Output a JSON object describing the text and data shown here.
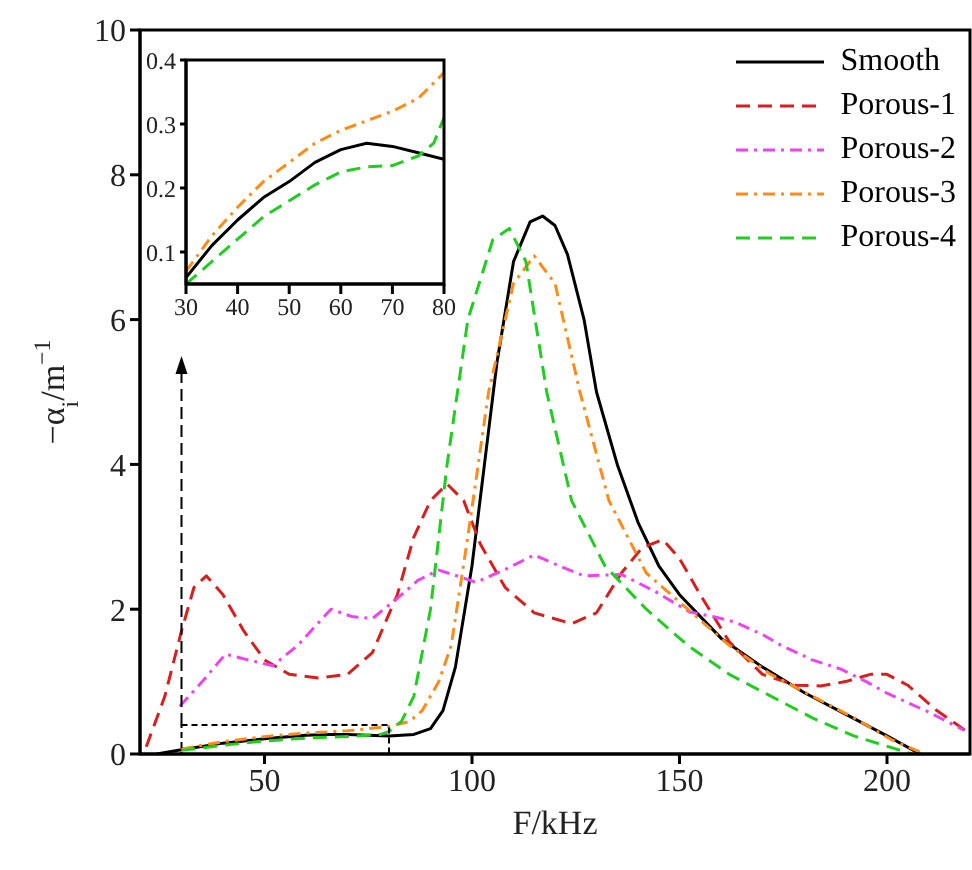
{
  "chart_data": [
    {
      "type": "line",
      "xlabel": "F/kHz",
      "ylabel": "−α$_{i}$/m$^{−1}$",
      "xlim": [
        20,
        220
      ],
      "ylim": [
        0,
        10
      ],
      "xticks": [
        50,
        100,
        150,
        200
      ],
      "yticks": [
        0,
        2,
        4,
        6,
        8,
        10
      ],
      "legend": "top right",
      "grid": false,
      "marker": "none",
      "series": [
        {
          "name": "Smooth",
          "color": "#000000",
          "line_style": "solid",
          "x": [
            24,
            30,
            40,
            50,
            60,
            65,
            70,
            80,
            86,
            90,
            93,
            96,
            100,
            103,
            106,
            110,
            114,
            117,
            120,
            123,
            127,
            130,
            135,
            140,
            145,
            150,
            160,
            170,
            180,
            190,
            200,
            208
          ],
          "values": [
            0,
            0.06,
            0.15,
            0.21,
            0.26,
            0.27,
            0.27,
            0.25,
            0.27,
            0.35,
            0.6,
            1.2,
            2.6,
            4,
            5.4,
            6.8,
            7.35,
            7.43,
            7.3,
            6.9,
            6,
            5,
            4,
            3.2,
            2.6,
            2.2,
            1.6,
            1.2,
            0.85,
            0.55,
            0.25,
            0
          ]
        },
        {
          "name": "Porous-1",
          "color": "#d62020",
          "line_style": "dashed",
          "x": [
            21.5,
            26,
            30,
            33,
            36,
            40,
            45,
            50,
            56,
            63,
            70,
            76,
            82,
            86,
            90,
            94,
            98,
            102,
            108,
            115,
            124,
            130,
            136,
            141,
            146,
            150,
            155,
            162,
            170,
            178,
            184,
            190,
            196,
            200,
            205,
            212,
            220
          ],
          "values": [
            0.1,
            0.8,
            1.7,
            2.3,
            2.46,
            2.2,
            1.7,
            1.3,
            1.1,
            1.05,
            1.1,
            1.4,
            2.2,
            3,
            3.5,
            3.73,
            3.5,
            2.9,
            2.3,
            1.95,
            1.8,
            1.95,
            2.5,
            2.85,
            2.96,
            2.7,
            2.2,
            1.55,
            1.1,
            0.95,
            0.94,
            1.0,
            1.1,
            1.1,
            0.95,
            0.6,
            0.28
          ]
        },
        {
          "name": "Porous-2",
          "color": "#ee44ee",
          "line_style": "dashdot",
          "x": [
            29.6,
            35,
            40.6,
            46,
            52,
            58,
            66,
            71,
            76,
            82,
            87,
            92,
            97,
            101,
            108,
            115,
            121,
            127,
            136,
            144,
            152.5,
            158,
            163.5,
            170,
            174.5,
            182,
            189,
            195,
            200,
            210,
            218.5
          ],
          "values": [
            0.66,
            1.0,
            1.38,
            1.3,
            1.22,
            1.5,
            2.0,
            1.9,
            1.87,
            2.15,
            2.4,
            2.54,
            2.45,
            2.37,
            2.55,
            2.75,
            2.6,
            2.46,
            2.48,
            2.25,
            1.96,
            1.9,
            1.82,
            1.65,
            1.5,
            1.3,
            1.17,
            1.0,
            0.84,
            0.58,
            0.33
          ]
        },
        {
          "name": "Porous-3",
          "color": "#ff8c1a",
          "line_style": "dashdot",
          "x": [
            30,
            40,
            50,
            60,
            70,
            80,
            85,
            88,
            92,
            95,
            99,
            104,
            110,
            115,
            120,
            126,
            133,
            142,
            152,
            162,
            172,
            182,
            192,
            201,
            209
          ],
          "values": [
            0.07,
            0.17,
            0.24,
            0.29,
            0.32,
            0.38,
            0.45,
            0.6,
            1,
            1.5,
            3,
            5,
            6.5,
            6.88,
            6.5,
            5,
            3.5,
            2.5,
            2,
            1.5,
            1.1,
            0.8,
            0.5,
            0.2,
            0
          ]
        },
        {
          "name": "Porous-4",
          "color": "#22cc22",
          "line_style": "dashed",
          "x": [
            30,
            40,
            50,
            60,
            70,
            78,
            80,
            83,
            86,
            90,
            94,
            99,
            105,
            109,
            113,
            118,
            124,
            132,
            142,
            152,
            162,
            172,
            182,
            192,
            206
          ],
          "values": [
            0.05,
            0.12,
            0.18,
            0.22,
            0.24,
            0.27,
            0.31,
            0.45,
            0.8,
            2,
            4,
            6,
            7.1,
            7.26,
            6.8,
            5,
            3.5,
            2.6,
            2,
            1.5,
            1.1,
            0.8,
            0.5,
            0.25,
            0
          ]
        }
      ]
    },
    {
      "type": "line",
      "xlim": [
        30,
        80
      ],
      "ylim": [
        0.05,
        0.4
      ],
      "xticks": [
        30,
        40,
        50,
        60,
        70,
        80
      ],
      "yticks": [
        0.1,
        0.2,
        0.3,
        0.4
      ],
      "grid": false,
      "marker": "none",
      "series": [
        {
          "color": "#000000",
          "line_style": "solid",
          "x": [
            30,
            35,
            40,
            45,
            50,
            55,
            60,
            65,
            70,
            75,
            80
          ],
          "values": [
            0.06,
            0.11,
            0.15,
            0.185,
            0.21,
            0.24,
            0.26,
            0.27,
            0.265,
            0.255,
            0.245
          ]
        },
        {
          "color": "#ff8c1a",
          "line_style": "dashdot",
          "x": [
            30,
            35,
            40,
            45,
            50,
            55,
            60,
            65,
            70,
            75,
            80
          ],
          "values": [
            0.07,
            0.125,
            0.17,
            0.21,
            0.24,
            0.27,
            0.29,
            0.305,
            0.32,
            0.34,
            0.38
          ]
        },
        {
          "color": "#22cc22",
          "line_style": "dashed",
          "x": [
            30,
            35,
            40,
            45,
            50,
            55,
            60,
            65,
            70,
            75,
            78,
            80
          ],
          "values": [
            0.05,
            0.085,
            0.12,
            0.155,
            0.18,
            0.205,
            0.225,
            0.233,
            0.235,
            0.25,
            0.27,
            0.31
          ]
        }
      ]
    }
  ]
}
